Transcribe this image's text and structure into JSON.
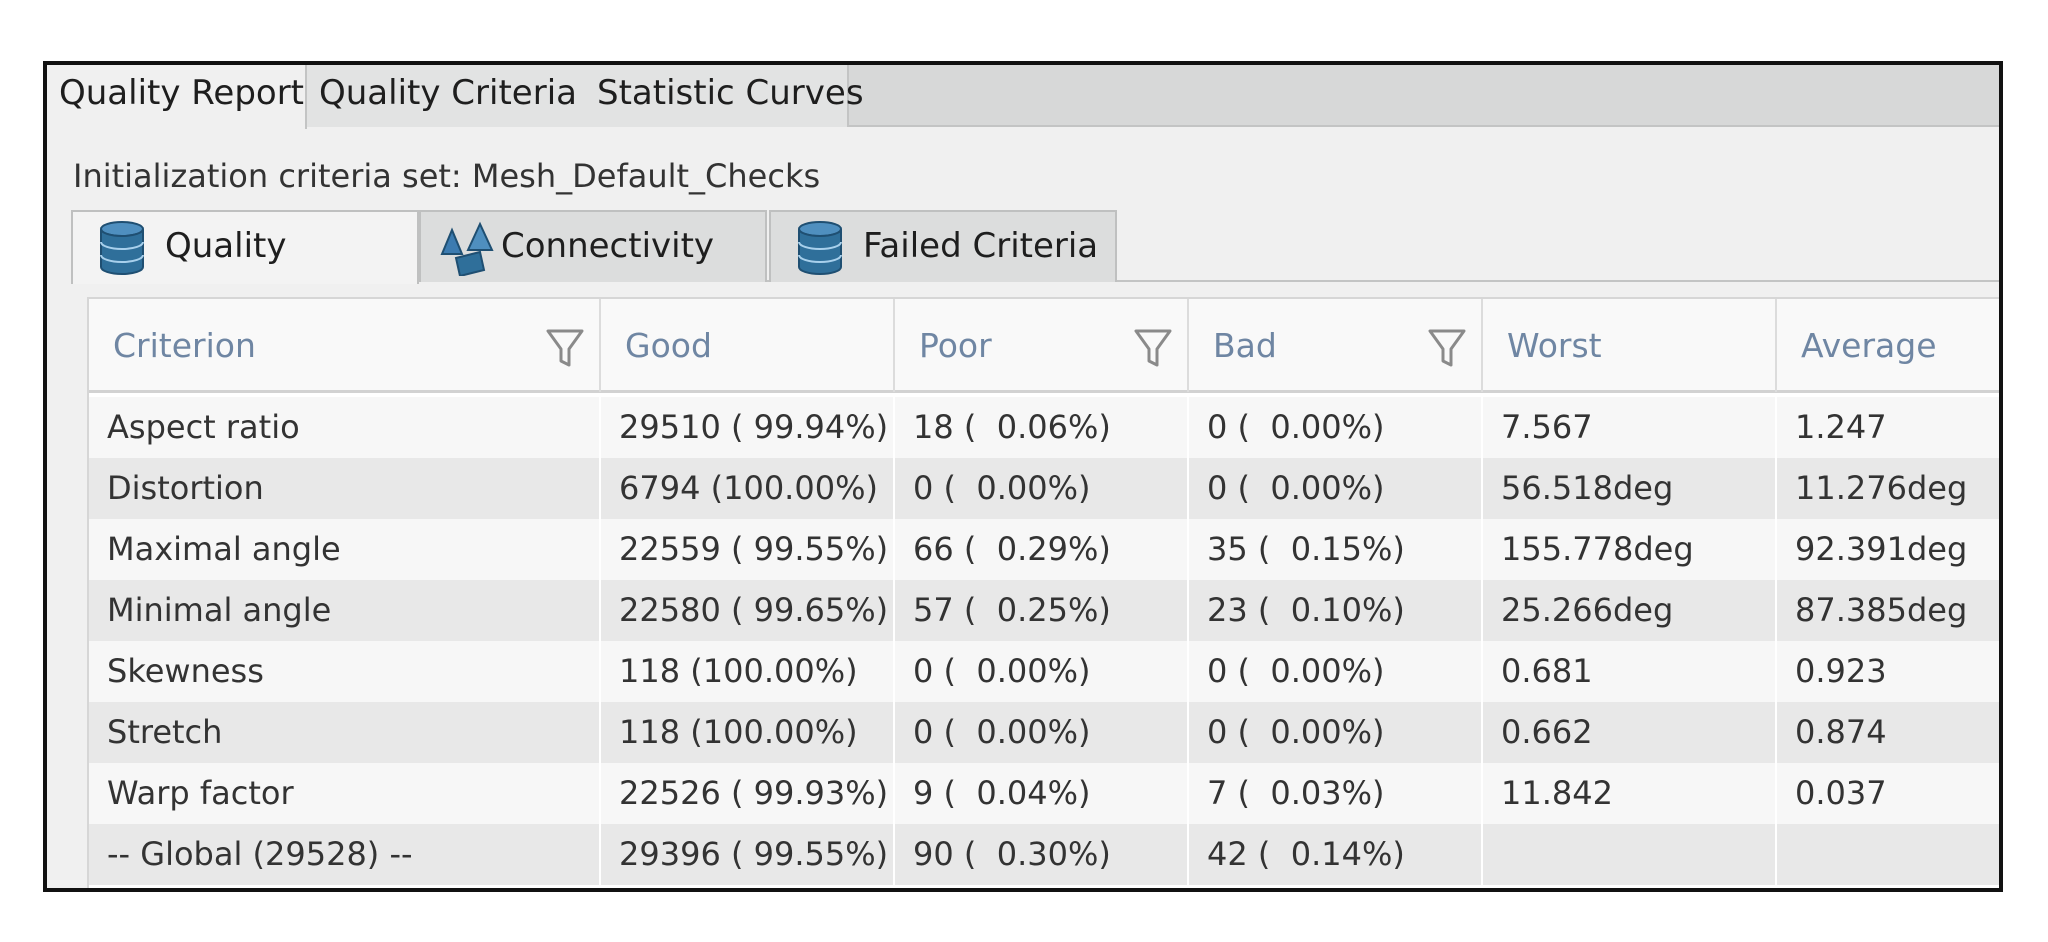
{
  "top_tabs": [
    {
      "label": "Quality Report",
      "active": true
    },
    {
      "label": "Quality Criteria",
      "active": false
    },
    {
      "label": "Statistic Curves",
      "active": false
    }
  ],
  "criteria_set": "Initialization criteria set: Mesh_Default_Checks",
  "sub_tabs": [
    {
      "label": "Quality",
      "icon": "database-icon",
      "active": true
    },
    {
      "label": "Connectivity",
      "icon": "shapes-icon",
      "active": false
    },
    {
      "label": "Failed Criteria",
      "icon": "database-icon",
      "active": false
    }
  ],
  "table": {
    "columns": [
      {
        "label": "Criterion",
        "filter": true
      },
      {
        "label": "Good",
        "filter": false
      },
      {
        "label": "Poor",
        "filter": true
      },
      {
        "label": "Bad",
        "filter": true
      },
      {
        "label": "Worst",
        "filter": false
      },
      {
        "label": "Average",
        "filter": false
      }
    ],
    "rows": [
      [
        "Aspect ratio",
        "29510 ( 99.94%)",
        "18 (  0.06%)",
        "0 (  0.00%)",
        "7.567",
        "1.247"
      ],
      [
        "Distortion",
        "6794 (100.00%)",
        "0 (  0.00%)",
        "0 (  0.00%)",
        "56.518deg",
        "11.276deg"
      ],
      [
        "Maximal angle",
        "22559 ( 99.55%)",
        "66 (  0.29%)",
        "35 (  0.15%)",
        "155.778deg",
        "92.391deg"
      ],
      [
        "Minimal angle",
        "22580 ( 99.65%)",
        "57 (  0.25%)",
        "23 (  0.10%)",
        "25.266deg",
        "87.385deg"
      ],
      [
        "Skewness",
        "118 (100.00%)",
        "0 (  0.00%)",
        "0 (  0.00%)",
        "0.681",
        "0.923"
      ],
      [
        "Stretch",
        "118 (100.00%)",
        "0 (  0.00%)",
        "0 (  0.00%)",
        "0.662",
        "0.874"
      ],
      [
        "Warp factor",
        "22526 ( 99.93%)",
        "9 (  0.04%)",
        "7 (  0.03%)",
        "11.842",
        "0.037"
      ],
      [
        "-- Global (29528) --",
        "29396 ( 99.55%)",
        "90 (  0.30%)",
        "42 (  0.14%)",
        "",
        ""
      ]
    ]
  },
  "colors": {
    "header_text": "#6f86a3",
    "icon_blue": "#2f6f9a",
    "row_odd": "#f7f7f7",
    "row_even": "#e8e8e8"
  }
}
